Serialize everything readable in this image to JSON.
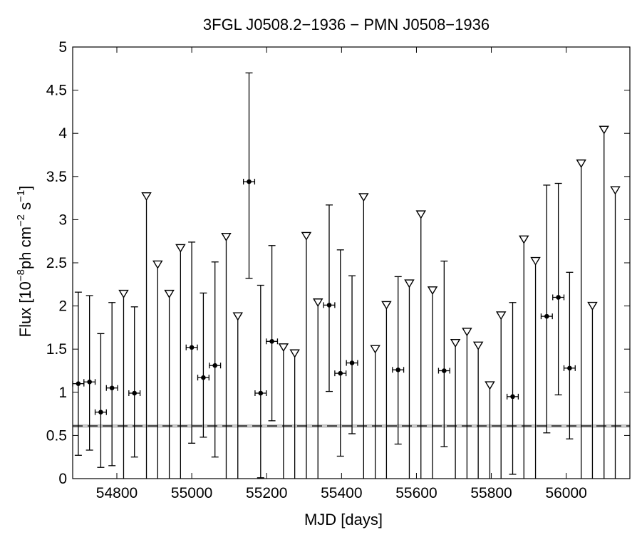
{
  "chart_data": {
    "type": "scatter",
    "title": "3FGL J0508.2−1936 − PMN J0508−1936",
    "xlabel": "MJD [days]",
    "ylabel_parts": {
      "prefix": "Flux [10",
      "exp1": "−8",
      "middle": "ph cm",
      "exp2": "−2",
      "middle2": " s",
      "exp3": "−1",
      "suffix": "]"
    },
    "xlim": [
      54682,
      56170
    ],
    "ylim": [
      0,
      5
    ],
    "x_ticks": [
      54800,
      55000,
      55200,
      55400,
      55600,
      55800,
      56000
    ],
    "x_tick_labels": [
      "54800",
      "55000",
      "55200",
      "55400",
      "55600",
      "55800",
      "56000"
    ],
    "y_ticks": [
      0,
      0.5,
      1,
      1.5,
      2,
      2.5,
      3,
      3.5,
      4,
      4.5,
      5
    ],
    "y_tick_labels": [
      "0",
      "0.5",
      "1",
      "1.5",
      "2",
      "2.5",
      "3",
      "3.5",
      "4",
      "4.5",
      "5"
    ],
    "grid": false,
    "reference_level": 0.61,
    "bin_half_width": 15,
    "detections": [
      {
        "x": 54697,
        "y": 1.1,
        "ylo": 0.27,
        "yhi": 2.16
      },
      {
        "x": 54727,
        "y": 1.12,
        "ylo": 0.33,
        "yhi": 2.12
      },
      {
        "x": 54757,
        "y": 0.77,
        "ylo": 0.13,
        "yhi": 1.68
      },
      {
        "x": 54787,
        "y": 1.05,
        "ylo": 0.15,
        "yhi": 2.04
      },
      {
        "x": 54847,
        "y": 0.99,
        "ylo": 0.25,
        "yhi": 1.99
      },
      {
        "x": 55000,
        "y": 1.52,
        "ylo": 0.41,
        "yhi": 2.74
      },
      {
        "x": 55031,
        "y": 1.17,
        "ylo": 0.48,
        "yhi": 2.15
      },
      {
        "x": 55062,
        "y": 1.31,
        "ylo": 0.25,
        "yhi": 2.51
      },
      {
        "x": 55153,
        "y": 3.44,
        "ylo": 2.32,
        "yhi": 4.7
      },
      {
        "x": 55184,
        "y": 0.99,
        "ylo": 0.01,
        "yhi": 2.24
      },
      {
        "x": 55214,
        "y": 1.59,
        "ylo": 0.67,
        "yhi": 2.7
      },
      {
        "x": 55367,
        "y": 2.01,
        "ylo": 1.01,
        "yhi": 3.17
      },
      {
        "x": 55397,
        "y": 1.22,
        "ylo": 0.26,
        "yhi": 2.65
      },
      {
        "x": 55428,
        "y": 1.34,
        "ylo": 0.52,
        "yhi": 2.35
      },
      {
        "x": 55551,
        "y": 1.26,
        "ylo": 0.4,
        "yhi": 2.34
      },
      {
        "x": 55674,
        "y": 1.25,
        "ylo": 0.37,
        "yhi": 2.52
      },
      {
        "x": 55857,
        "y": 0.95,
        "ylo": 0.05,
        "yhi": 2.04
      },
      {
        "x": 55948,
        "y": 1.88,
        "ylo": 0.53,
        "yhi": 3.4
      },
      {
        "x": 55979,
        "y": 2.1,
        "ylo": 0.97,
        "yhi": 3.42
      },
      {
        "x": 56009,
        "y": 1.28,
        "ylo": 0.46,
        "yhi": 2.39
      }
    ],
    "upper_limits": [
      {
        "x": 54818,
        "y": 2.14
      },
      {
        "x": 54879,
        "y": 3.27
      },
      {
        "x": 54909,
        "y": 2.48
      },
      {
        "x": 54940,
        "y": 2.14
      },
      {
        "x": 54970,
        "y": 2.67
      },
      {
        "x": 55092,
        "y": 2.8
      },
      {
        "x": 55123,
        "y": 1.88
      },
      {
        "x": 55245,
        "y": 1.52
      },
      {
        "x": 55275,
        "y": 1.45
      },
      {
        "x": 55306,
        "y": 2.81
      },
      {
        "x": 55337,
        "y": 2.04
      },
      {
        "x": 55459,
        "y": 3.26
      },
      {
        "x": 55490,
        "y": 1.5
      },
      {
        "x": 55520,
        "y": 2.01
      },
      {
        "x": 55581,
        "y": 2.26
      },
      {
        "x": 55612,
        "y": 3.06
      },
      {
        "x": 55643,
        "y": 2.18
      },
      {
        "x": 55704,
        "y": 1.57
      },
      {
        "x": 55735,
        "y": 1.7
      },
      {
        "x": 55765,
        "y": 1.54
      },
      {
        "x": 55796,
        "y": 1.08
      },
      {
        "x": 55826,
        "y": 1.89
      },
      {
        "x": 55887,
        "y": 2.77
      },
      {
        "x": 55918,
        "y": 2.52
      },
      {
        "x": 56040,
        "y": 3.65
      },
      {
        "x": 56070,
        "y": 2.0
      },
      {
        "x": 56101,
        "y": 4.04
      },
      {
        "x": 56131,
        "y": 3.34
      }
    ],
    "colors": {
      "axes": "#000000",
      "markers": "#000000",
      "reference_band": "#c8c8c8",
      "reference_dash": "#000000"
    }
  }
}
